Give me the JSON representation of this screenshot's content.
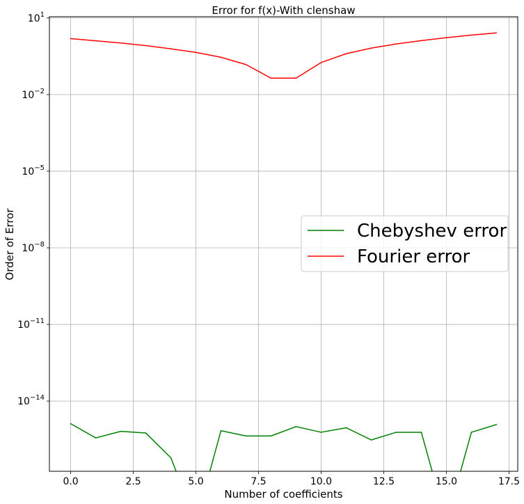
{
  "chart_data": {
    "type": "line",
    "title": "Error for f(x)-With clenshaw",
    "xlabel": "Number of coefficients",
    "ylabel": "Order of Error",
    "yscale": "log",
    "xlim": [
      -0.85,
      17.85
    ],
    "ylim_exp": [
      -16.75,
      1.05
    ],
    "xticks": [
      0.0,
      2.5,
      5.0,
      7.5,
      10.0,
      12.5,
      15.0,
      17.5
    ],
    "xtick_labels": [
      "0.0",
      "2.5",
      "5.0",
      "7.5",
      "10.0",
      "12.5",
      "15.0",
      "17.5"
    ],
    "yticks_exp": [
      1,
      -2,
      -5,
      -8,
      -11,
      -14
    ],
    "ytick_base": "10",
    "ytick_exponents": [
      "1",
      "−2",
      "−5",
      "−8",
      "−11",
      "−14"
    ],
    "grid": true,
    "legend_position": "center-right",
    "series": [
      {
        "name": "Chebyshev error",
        "color": "#008000",
        "x": [
          0,
          1,
          2,
          3,
          4,
          5,
          6,
          7,
          8,
          9,
          10,
          11,
          12,
          13,
          14,
          15,
          16,
          17
        ],
        "y": [
          1.3e-15,
          3.6e-16,
          6.5e-16,
          5.6e-16,
          6e-17,
          0,
          6.9e-16,
          4.3e-16,
          4.3e-16,
          1e-15,
          6e-16,
          9e-16,
          3e-16,
          6e-16,
          6e-16,
          0,
          6e-16,
          1.2e-15
        ]
      },
      {
        "name": "Fourier error",
        "color": "#ff0000",
        "x": [
          0,
          1,
          2,
          3,
          4,
          5,
          6,
          7,
          8,
          9,
          10,
          11,
          12,
          13,
          14,
          15,
          16,
          17
        ],
        "y": [
          1.55,
          1.28,
          1.05,
          0.83,
          0.62,
          0.45,
          0.29,
          0.15,
          0.044,
          0.044,
          0.18,
          0.4,
          0.66,
          0.96,
          1.3,
          1.7,
          2.15,
          2.6
        ]
      }
    ]
  }
}
